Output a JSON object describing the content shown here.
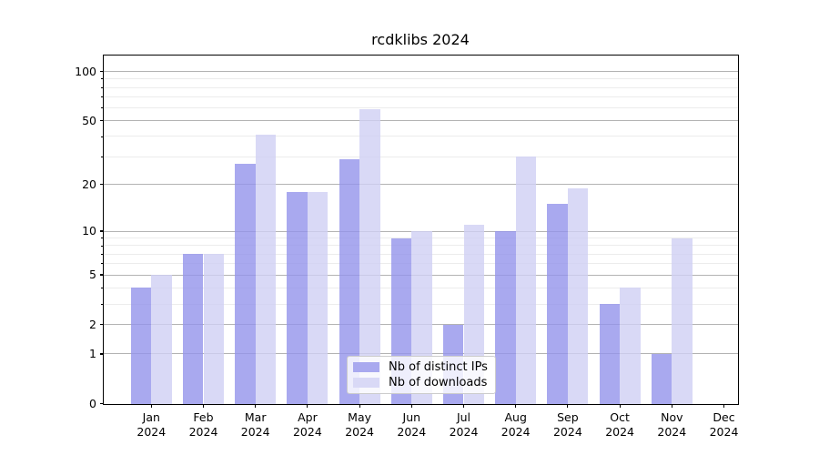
{
  "chart_data": {
    "type": "bar",
    "title": "rcdklibs 2024",
    "categories": [
      "Jan 2024",
      "Feb 2024",
      "Mar 2024",
      "Apr 2024",
      "May 2024",
      "Jun 2024",
      "Jul 2024",
      "Aug 2024",
      "Sep 2024",
      "Oct 2024",
      "Nov 2024",
      "Dec 2024"
    ],
    "series": [
      {
        "name": "Nb of distinct IPs",
        "color": "#a9a9ef",
        "values": [
          4,
          7,
          27,
          18,
          29,
          9,
          2,
          10,
          15,
          3,
          1,
          0
        ]
      },
      {
        "name": "Nb of downloads",
        "color": "#d9d9f6",
        "values": [
          5,
          7,
          41,
          18,
          59,
          10,
          11,
          30,
          19,
          4,
          9,
          0
        ]
      }
    ],
    "xlabel": "",
    "ylabel": "",
    "y_scale": "log(1+x)",
    "y_tick_labels": [
      100,
      50,
      20,
      10,
      5,
      2,
      1,
      0
    ],
    "y_minor_gridlines": [
      3,
      4,
      6,
      7,
      8,
      9,
      30,
      40,
      60,
      70,
      80,
      90
    ],
    "ylim": [
      0,
      125
    ],
    "grid": "horizontal",
    "legend_position": "inside-bottom-center"
  },
  "colors": {
    "major_grid": "#b3b3b3",
    "minor_grid": "#ececec",
    "axis": "#000000",
    "legend_border": "#cccccc"
  }
}
